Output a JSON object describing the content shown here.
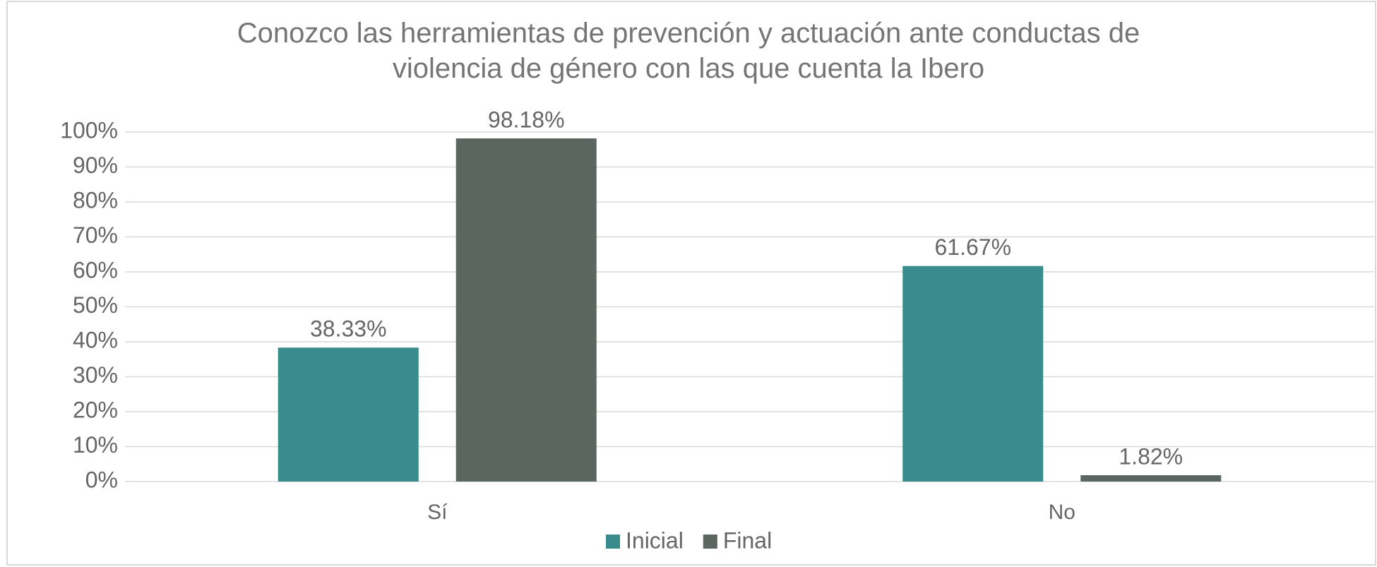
{
  "chart_data": {
    "type": "bar",
    "title": "Conozco las herramientas de prevención y actuación ante conductas de violencia de género con las que cuenta la Ibero",
    "categories": [
      "Sí",
      "No"
    ],
    "series": [
      {
        "name": "Inicial",
        "color": "#3a8b8c",
        "values": [
          38.33,
          61.67
        ],
        "value_labels": [
          "38.33%",
          "61.67%"
        ]
      },
      {
        "name": "Final",
        "color": "#5b6661",
        "values": [
          98.18,
          1.82
        ],
        "value_labels": [
          "98.18%",
          "1.82%"
        ]
      }
    ],
    "ylim": [
      0,
      100
    ],
    "yticks": [
      {
        "value": 0,
        "label": "0%"
      },
      {
        "value": 10,
        "label": "10%"
      },
      {
        "value": 20,
        "label": "20%"
      },
      {
        "value": 30,
        "label": "30%"
      },
      {
        "value": 40,
        "label": "40%"
      },
      {
        "value": 50,
        "label": "50%"
      },
      {
        "value": 60,
        "label": "60%"
      },
      {
        "value": 70,
        "label": "70%"
      },
      {
        "value": 80,
        "label": "80%"
      },
      {
        "value": 90,
        "label": "90%"
      },
      {
        "value": 100,
        "label": "100%"
      }
    ],
    "grid": true,
    "legend": "bottom"
  }
}
